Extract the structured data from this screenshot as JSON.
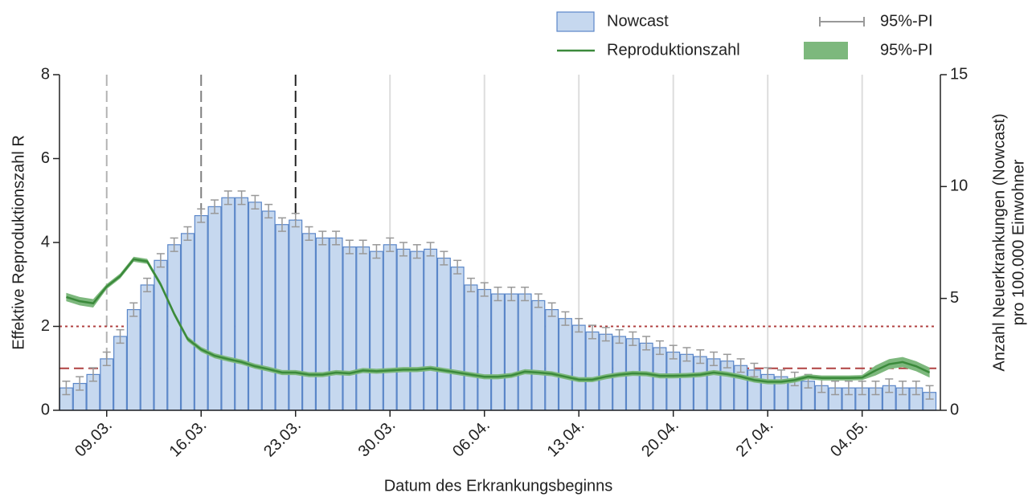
{
  "chart_data": {
    "type": "bar",
    "xlabel": "Datum des Erkrankungsbeginns",
    "ylabel": "Effektive Reproduktionszahl R",
    "y2label": [
      "Anzahl Neuerkrankungen (Nowcast)",
      "pro 100.000 Einwohner"
    ],
    "categories": [
      null,
      null,
      null,
      "09.03.",
      null,
      null,
      null,
      null,
      null,
      null,
      "16.03.",
      null,
      null,
      null,
      null,
      null,
      null,
      "23.03.",
      null,
      null,
      null,
      null,
      null,
      null,
      "30.03.",
      null,
      null,
      null,
      null,
      null,
      null,
      "06.04.",
      null,
      null,
      null,
      null,
      null,
      null,
      "13.04.",
      null,
      null,
      null,
      null,
      null,
      null,
      "20.04.",
      null,
      null,
      null,
      null,
      null,
      null,
      "27.04.",
      null,
      null,
      null,
      null,
      null,
      null,
      "04.05.",
      null,
      null,
      null,
      null,
      null
    ],
    "ylim": [
      0,
      8
    ],
    "yticks": [
      0,
      2,
      4,
      6,
      8
    ],
    "y2lim": [
      0,
      15
    ],
    "y2ticks": [
      0,
      5,
      10,
      15
    ],
    "grid": true,
    "marker_colors": [
      "#b3b3b3",
      "#808080",
      "#222222"
    ],
    "hlines": [
      {
        "value": 2,
        "color": "#b04040",
        "dash": "dotted"
      },
      {
        "value": 1,
        "color": "#b04040",
        "dash": "dashed"
      }
    ],
    "series": [
      {
        "name": "Nowcast",
        "type": "bar",
        "axis": "y2",
        "color": "#c6d8ef",
        "edge_color": "#5a86c8",
        "values": [
          1.0,
          1.2,
          1.6,
          2.3,
          3.3,
          4.5,
          5.6,
          6.7,
          7.4,
          7.9,
          8.7,
          9.1,
          9.5,
          9.5,
          9.3,
          8.9,
          8.3,
          8.5,
          7.9,
          7.7,
          7.7,
          7.3,
          7.3,
          7.1,
          7.4,
          7.2,
          7.1,
          7.2,
          6.8,
          6.4,
          5.6,
          5.4,
          5.2,
          5.2,
          5.2,
          4.9,
          4.5,
          4.1,
          3.8,
          3.5,
          3.4,
          3.3,
          3.2,
          3.0,
          2.8,
          2.6,
          2.5,
          2.4,
          2.3,
          2.2,
          2.0,
          1.8,
          1.6,
          1.5,
          1.4,
          1.3,
          1.1,
          1.0,
          1.0,
          1.0,
          1.0,
          1.1,
          1.0,
          1.0,
          0.8
        ],
        "error_name": "95%-PI",
        "error_color": "#999999",
        "errors": [
          0.3,
          0.3,
          0.3,
          0.3,
          0.3,
          0.3,
          0.3,
          0.3,
          0.3,
          0.3,
          0.3,
          0.3,
          0.3,
          0.3,
          0.3,
          0.3,
          0.3,
          0.3,
          0.3,
          0.3,
          0.3,
          0.3,
          0.3,
          0.3,
          0.3,
          0.3,
          0.3,
          0.3,
          0.3,
          0.3,
          0.3,
          0.3,
          0.3,
          0.3,
          0.3,
          0.3,
          0.3,
          0.3,
          0.3,
          0.3,
          0.3,
          0.3,
          0.3,
          0.3,
          0.3,
          0.3,
          0.3,
          0.3,
          0.3,
          0.3,
          0.3,
          0.3,
          0.3,
          0.3,
          0.3,
          0.3,
          0.3,
          0.3,
          0.3,
          0.3,
          0.3,
          0.3,
          0.3,
          0.3,
          0.3
        ]
      },
      {
        "name": "Reproduktionszahl",
        "type": "line",
        "color": "#3b8a3b",
        "values": [
          2.7,
          2.6,
          2.55,
          2.95,
          3.2,
          3.6,
          3.55,
          3.0,
          2.3,
          1.7,
          1.45,
          1.3,
          1.22,
          1.15,
          1.05,
          0.98,
          0.9,
          0.9,
          0.85,
          0.85,
          0.9,
          0.88,
          0.95,
          0.93,
          0.95,
          0.97,
          0.97,
          1.0,
          0.95,
          0.9,
          0.85,
          0.8,
          0.8,
          0.83,
          0.92,
          0.9,
          0.87,
          0.8,
          0.73,
          0.73,
          0.8,
          0.85,
          0.88,
          0.87,
          0.82,
          0.82,
          0.83,
          0.85,
          0.9,
          0.86,
          0.8,
          0.72,
          0.68,
          0.68,
          0.72,
          0.8,
          0.77,
          0.77,
          0.77,
          0.78,
          0.95,
          1.1,
          1.15,
          1.05,
          0.9
        ],
        "band_name": "95%-PI",
        "band_color": "#7db87d",
        "lower": [
          2.6,
          2.5,
          2.45,
          2.89,
          3.14,
          3.54,
          3.49,
          2.94,
          2.24,
          1.64,
          1.39,
          1.24,
          1.16,
          1.09,
          0.99,
          0.92,
          0.84,
          0.84,
          0.79,
          0.79,
          0.84,
          0.82,
          0.89,
          0.87,
          0.89,
          0.91,
          0.91,
          0.94,
          0.89,
          0.84,
          0.79,
          0.74,
          0.74,
          0.77,
          0.86,
          0.84,
          0.81,
          0.74,
          0.67,
          0.67,
          0.74,
          0.79,
          0.82,
          0.81,
          0.76,
          0.76,
          0.77,
          0.79,
          0.84,
          0.8,
          0.74,
          0.66,
          0.62,
          0.62,
          0.66,
          0.74,
          0.71,
          0.71,
          0.71,
          0.72,
          0.83,
          0.98,
          1.03,
          0.93,
          0.78
        ],
        "upper": [
          2.8,
          2.7,
          2.65,
          3.01,
          3.26,
          3.66,
          3.61,
          3.06,
          2.36,
          1.76,
          1.51,
          1.36,
          1.28,
          1.21,
          1.11,
          1.04,
          0.96,
          0.96,
          0.91,
          0.91,
          0.96,
          0.94,
          1.01,
          0.99,
          1.01,
          1.03,
          1.03,
          1.06,
          1.01,
          0.96,
          0.91,
          0.86,
          0.86,
          0.89,
          0.98,
          0.96,
          0.93,
          0.86,
          0.79,
          0.79,
          0.86,
          0.91,
          0.94,
          0.93,
          0.88,
          0.88,
          0.89,
          0.91,
          0.96,
          0.92,
          0.86,
          0.78,
          0.74,
          0.74,
          0.78,
          0.86,
          0.83,
          0.83,
          0.83,
          0.84,
          1.07,
          1.22,
          1.27,
          1.17,
          1.02
        ]
      }
    ]
  }
}
